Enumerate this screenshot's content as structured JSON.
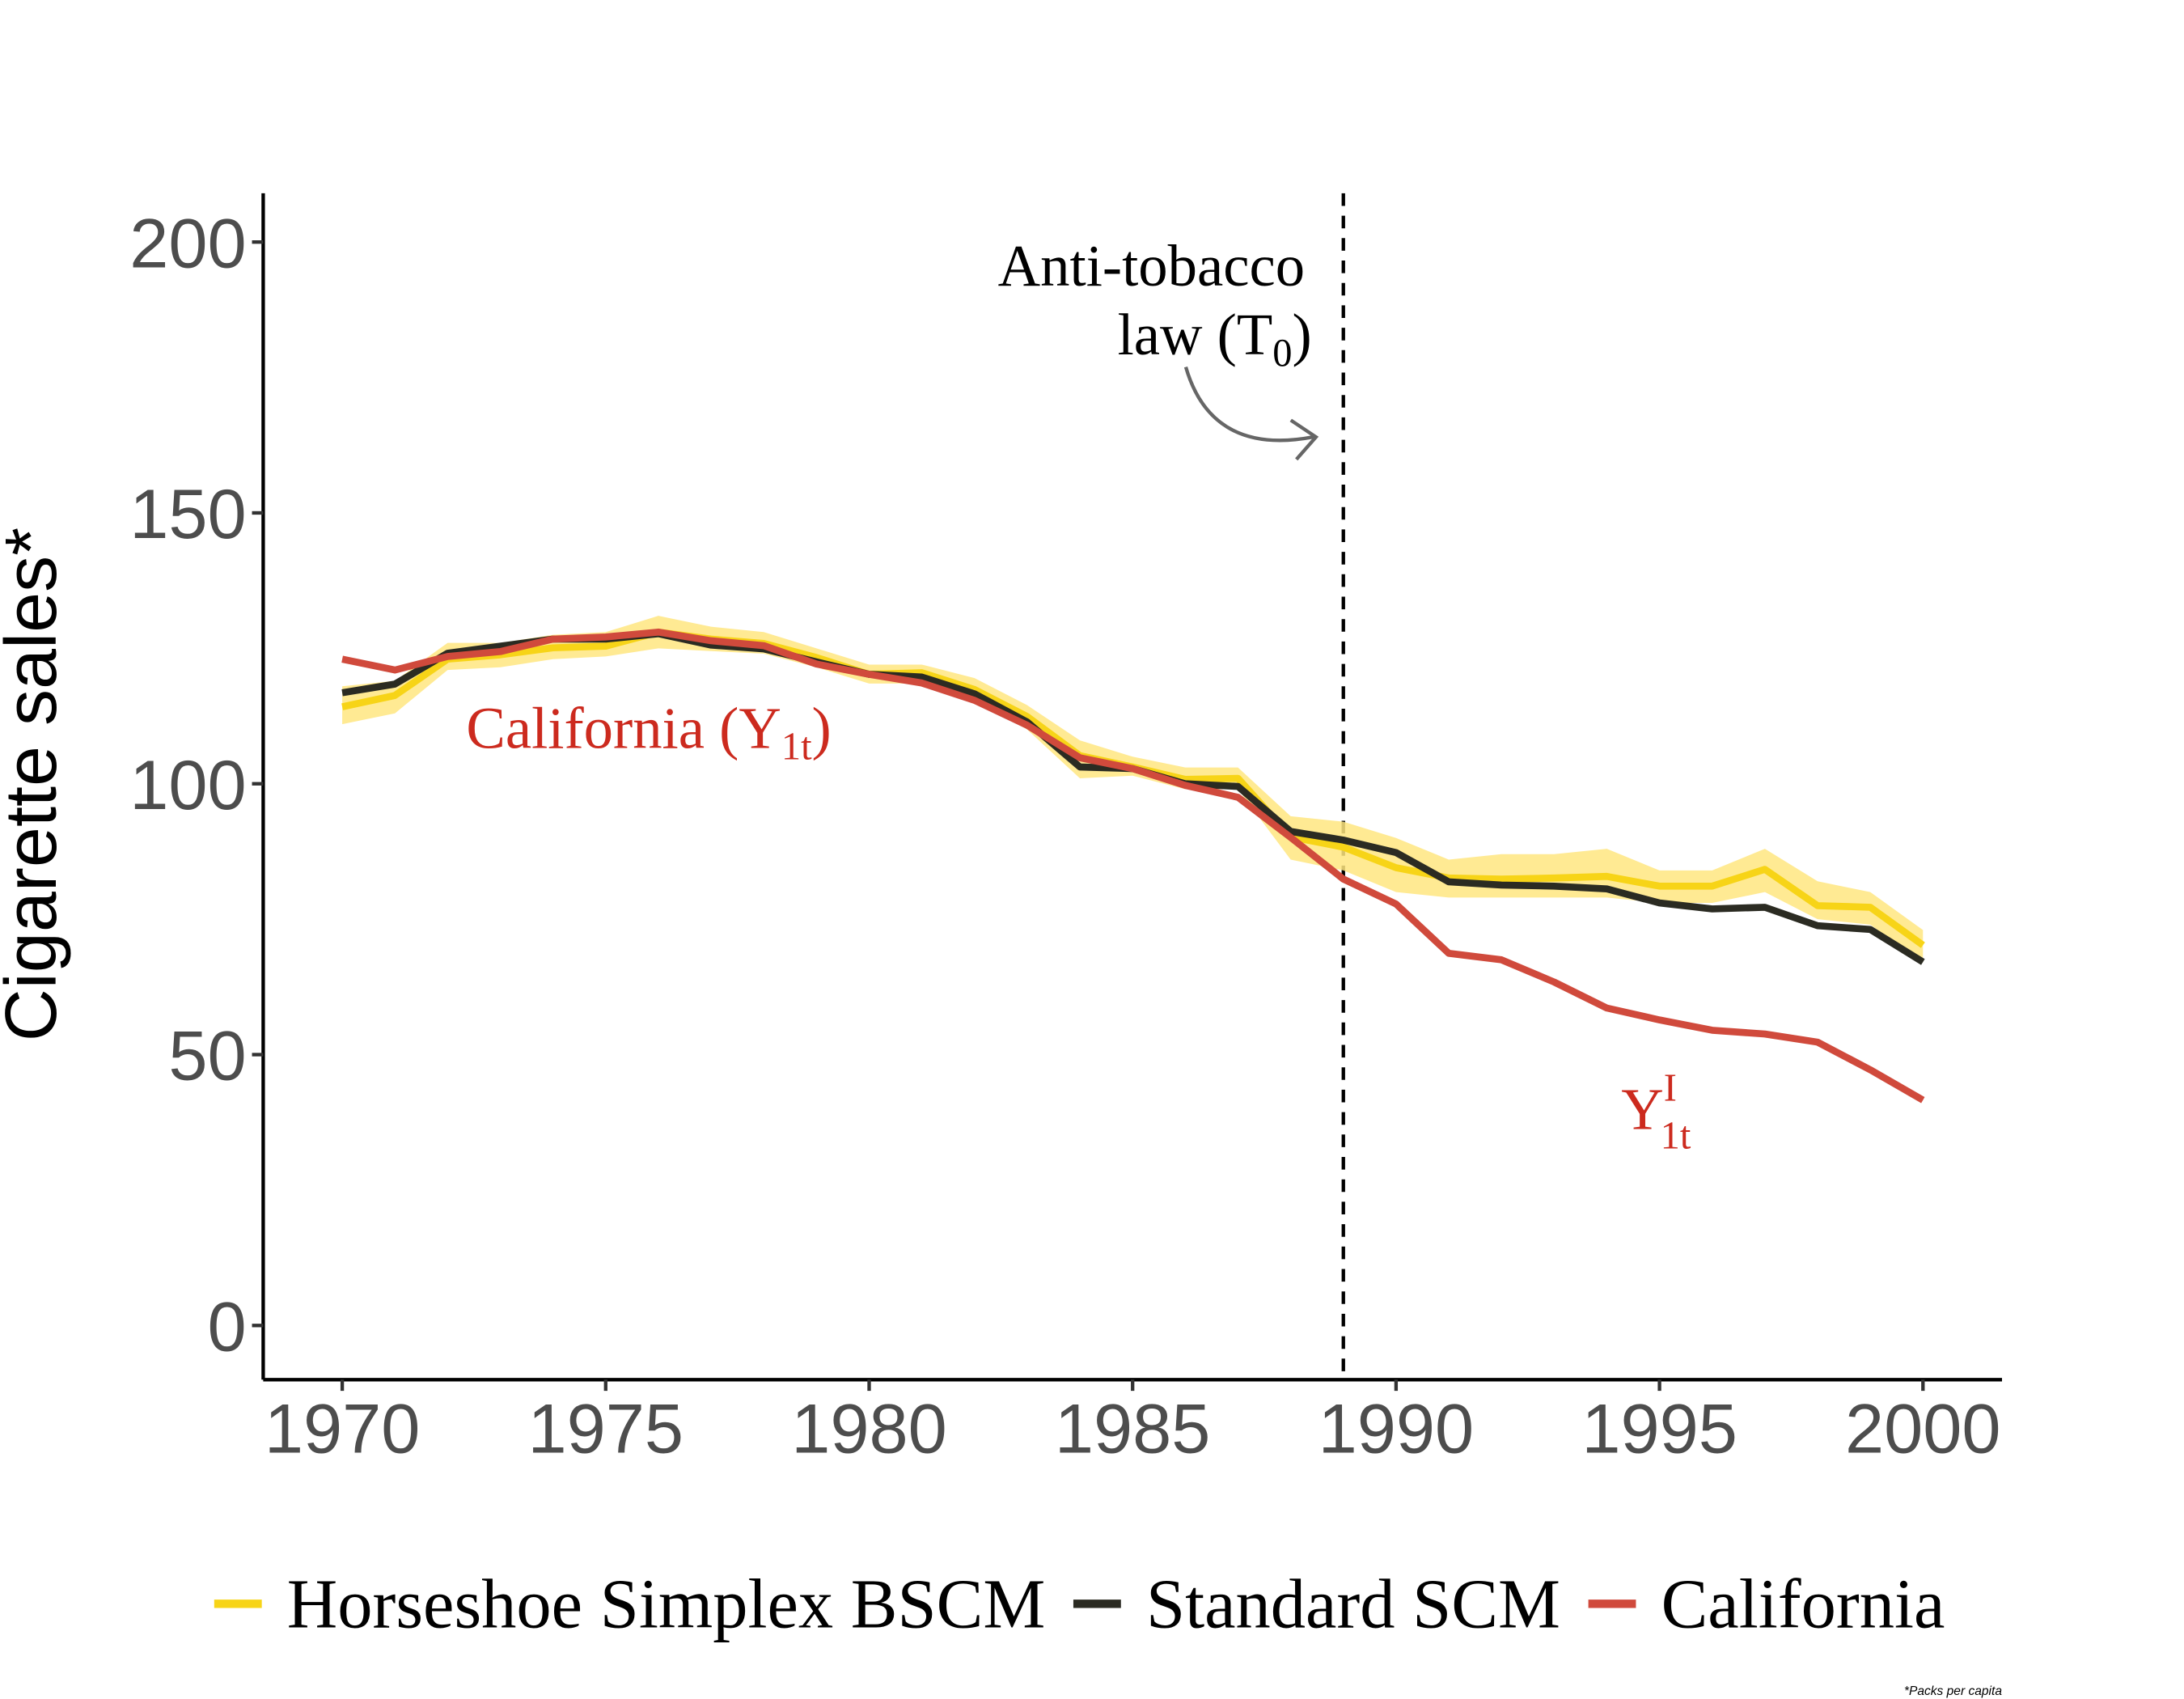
{
  "chart_data": {
    "type": "line",
    "ylabel": "Cigarette sales*",
    "footnote": "*Packs per capita",
    "x": [
      1970,
      1971,
      1972,
      1973,
      1974,
      1975,
      1976,
      1977,
      1978,
      1979,
      1980,
      1981,
      1982,
      1983,
      1984,
      1985,
      1986,
      1987,
      1988,
      1989,
      1990,
      1991,
      1992,
      1993,
      1994,
      1995,
      1996,
      1997,
      1998,
      1999,
      2000
    ],
    "xlim": [
      1968.5,
      2001.5
    ],
    "xticks": [
      1970,
      1975,
      1980,
      1985,
      1990,
      1995,
      2000
    ],
    "ylim": [
      -10,
      209
    ],
    "yticks": [
      0,
      50,
      100,
      150,
      200
    ],
    "grid": false,
    "legend": "bottom",
    "vline": 1989,
    "law_annotation": {
      "line1": "Anti-tobacco",
      "line2": "law (T",
      "sub": "0",
      "close": ")"
    },
    "california_label": {
      "text": "California (Y",
      "sub": "1t",
      "close": ")"
    },
    "counterfactual_label": {
      "text": "Y",
      "sup": "I",
      "sub": "1t"
    },
    "series": [
      {
        "name": "Horseshoe Simplex BSCM",
        "color": "#f7d417",
        "band_color": "#ffe680",
        "values": [
          114.2,
          116.3,
          123,
          123.8,
          125.1,
          125.4,
          128,
          126.7,
          125.9,
          123.3,
          120.2,
          120.5,
          117.4,
          112.4,
          105.2,
          103.1,
          100.8,
          101,
          90.2,
          88.3,
          84.5,
          82.6,
          82.4,
          82.6,
          82.9,
          81.1,
          81.1,
          84.2,
          77.5,
          77.2,
          70.2
        ],
        "lower": [
          111,
          113,
          121,
          121.5,
          123,
          123.5,
          125,
          124.5,
          124,
          121.5,
          118.5,
          118.5,
          115.5,
          110,
          101,
          101.5,
          99,
          99,
          86,
          84,
          80,
          79,
          79,
          79,
          79,
          78,
          78,
          80,
          75,
          74,
          67
        ],
        "upper": [
          118,
          119,
          126,
          126,
          127.5,
          128,
          131,
          129,
          128,
          125,
          122,
          122,
          119.5,
          114.5,
          108,
          105,
          103,
          103,
          94,
          93,
          90,
          86,
          87,
          87,
          88,
          84,
          84,
          88,
          82,
          80,
          73
        ]
      },
      {
        "name": "Standard SCM",
        "color": "#2b2b22",
        "values": [
          116.8,
          118.4,
          124.1,
          125.4,
          126.7,
          126.7,
          127.7,
          125.6,
          124.9,
          122.5,
          120.2,
          119.7,
          116.6,
          111.4,
          103.1,
          102.8,
          100,
          99.5,
          91.2,
          89.6,
          87.3,
          81.9,
          81.3,
          81.1,
          80.6,
          78,
          76.9,
          77.2,
          73.8,
          73.1,
          67.1
        ]
      },
      {
        "name": "California",
        "color": "#d04a3c",
        "values": [
          123,
          121,
          123.5,
          124.4,
          126.7,
          127.1,
          128,
          126.4,
          125.5,
          122.1,
          120.2,
          118.6,
          115.4,
          110.8,
          104.8,
          102.8,
          99.7,
          97.5,
          90.1,
          82.4,
          77.8,
          68.7,
          67.5,
          63.4,
          58.6,
          56.4,
          54.5,
          53.8,
          52.3,
          47.2,
          41.6
        ]
      }
    ]
  }
}
